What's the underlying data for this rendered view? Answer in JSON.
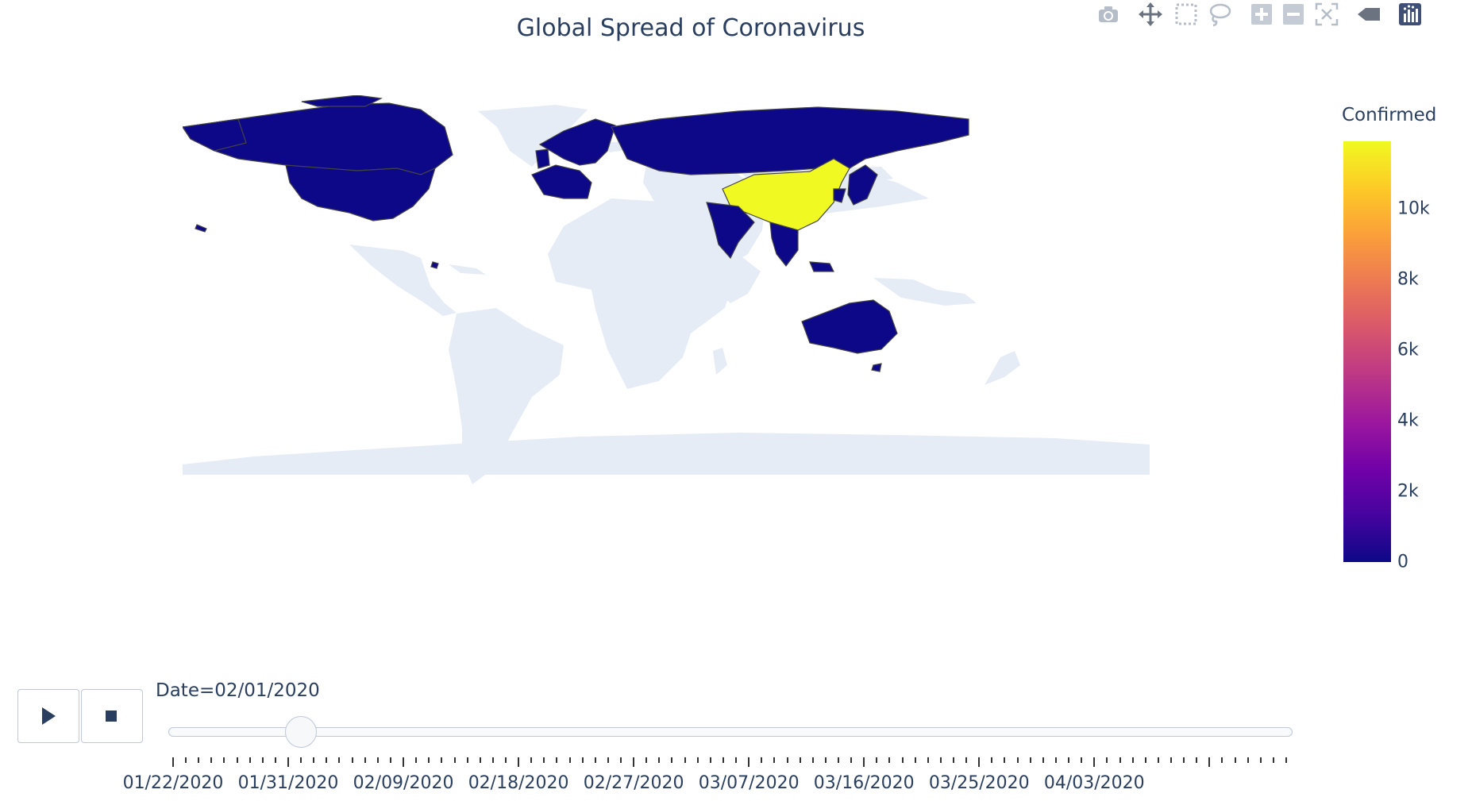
{
  "title": "Global Spread of Coronavirus",
  "modebar": [
    {
      "name": "camera-icon",
      "label": "Download plot as a png"
    },
    {
      "name": "pan-icon",
      "label": "Pan"
    },
    {
      "name": "box-select-icon",
      "label": "Box Select"
    },
    {
      "name": "lasso-select-icon",
      "label": "Lasso Select"
    },
    {
      "name": "zoom-in-icon",
      "label": "Zoom in"
    },
    {
      "name": "zoom-out-icon",
      "label": "Zoom out"
    },
    {
      "name": "reset-view-icon",
      "label": "Reset"
    },
    {
      "name": "hover-closest-icon",
      "label": "Show closest data on hover"
    },
    {
      "name": "plotly-logo-icon",
      "label": "Produced with Plotly"
    }
  ],
  "colors": {
    "land": "#e5ecf6",
    "low": "#0d0887",
    "high": "#f0f921",
    "text": "#2a3f5f",
    "border": "#444444"
  },
  "colorbar": {
    "title": "Confirmed",
    "ticks": [
      "0",
      "2k",
      "4k",
      "6k",
      "8k",
      "10k"
    ],
    "tick_values": [
      0,
      2000,
      4000,
      6000,
      8000,
      10000
    ],
    "max": 11900,
    "colorscale": "Plasma"
  },
  "map_data": {
    "type": "choropleth",
    "projection": "equirectangular",
    "date": "02/01/2020",
    "highlighted_regions": [
      {
        "region": "China",
        "level": "max"
      },
      {
        "region": "United States",
        "level": "low"
      },
      {
        "region": "Canada",
        "level": "low"
      },
      {
        "region": "Russia",
        "level": "low"
      },
      {
        "region": "Western Europe",
        "level": "low"
      },
      {
        "region": "Nordic countries",
        "level": "low"
      },
      {
        "region": "India",
        "level": "low"
      },
      {
        "region": "Japan",
        "level": "low"
      },
      {
        "region": "South Korea",
        "level": "low"
      },
      {
        "region": "Southeast Asia",
        "level": "low"
      },
      {
        "region": "Australia",
        "level": "low"
      }
    ]
  },
  "animation": {
    "current_label": "Date=02/01/2020",
    "play_label": "Play",
    "stop_label": "Stop",
    "current_index": 10,
    "total_steps": 88,
    "tick_labels": [
      "01/22/2020",
      "01/31/2020",
      "02/09/2020",
      "02/18/2020",
      "02/27/2020",
      "03/07/2020",
      "03/16/2020",
      "03/25/2020",
      "04/03/2020"
    ]
  }
}
